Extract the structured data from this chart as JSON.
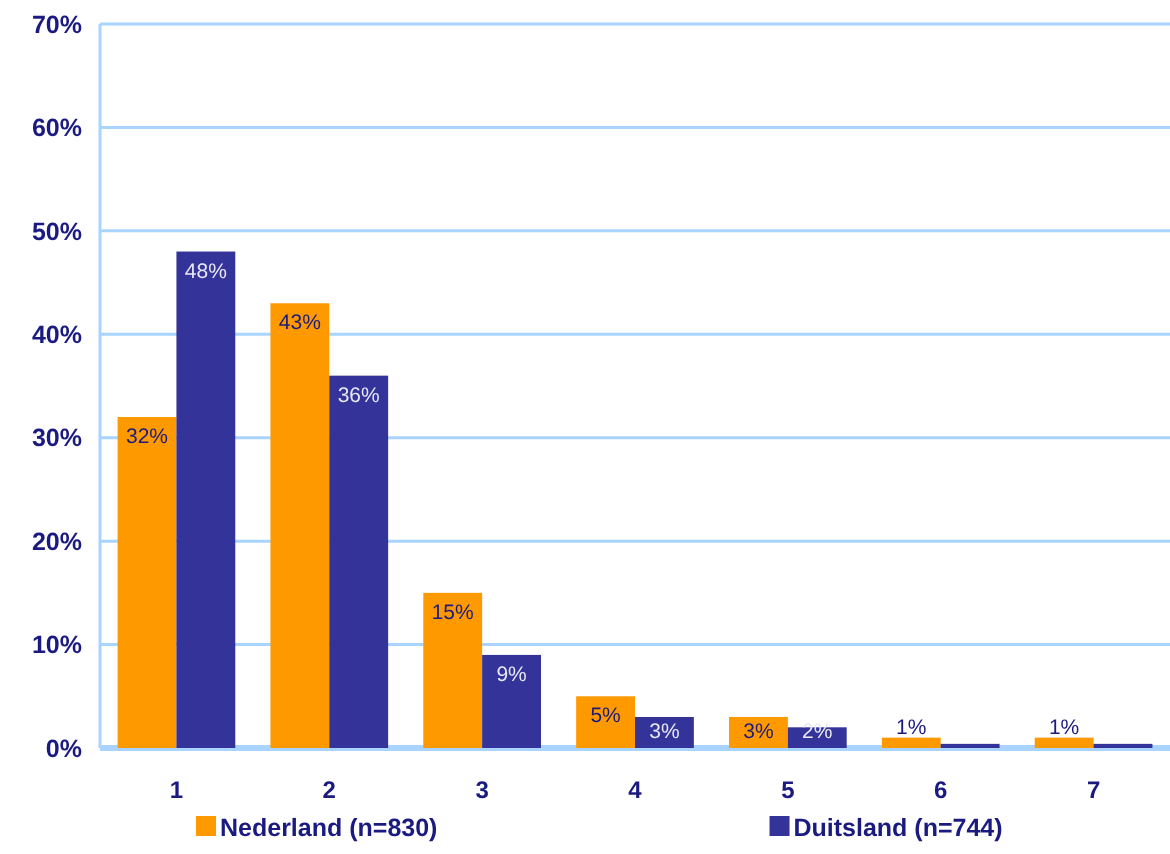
{
  "chart_data": {
    "type": "bar",
    "categories": [
      "1",
      "2",
      "3",
      "4",
      "5",
      "6",
      "7"
    ],
    "series": [
      {
        "name": "Nederland (n=830)",
        "color": "#ff9900",
        "values": [
          32,
          43,
          15,
          5,
          3,
          1,
          1
        ],
        "value_labels": [
          "32%",
          "43%",
          "15%",
          "5%",
          "3%",
          "1%",
          "1%"
        ]
      },
      {
        "name": "Duitsland (n=744)",
        "color": "#333399",
        "values": [
          48,
          36,
          9,
          3,
          2,
          0.4,
          0.4
        ],
        "value_labels": [
          "48%",
          "36%",
          "9%",
          "3%",
          "2%",
          null,
          null
        ]
      }
    ],
    "ylim": [
      0,
      70
    ],
    "yticks": [
      {
        "value": 0,
        "label": "0%"
      },
      {
        "value": 10,
        "label": "10%"
      },
      {
        "value": 20,
        "label": "20%"
      },
      {
        "value": 30,
        "label": "30%"
      },
      {
        "value": 40,
        "label": "40%"
      },
      {
        "value": 50,
        "label": "50%"
      },
      {
        "value": 60,
        "label": "60%"
      },
      {
        "value": 70,
        "label": "70%"
      }
    ],
    "grid": "y",
    "legend": "bottom"
  }
}
